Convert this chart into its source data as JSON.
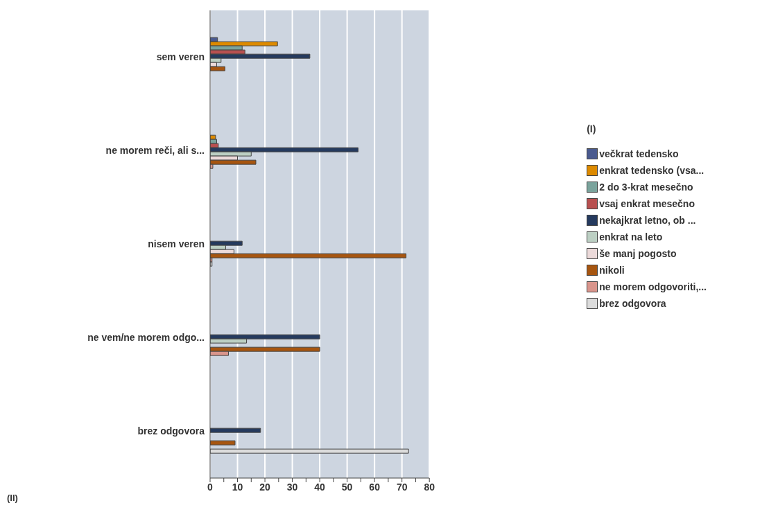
{
  "chart_data": {
    "type": "bar",
    "orientation": "horizontal",
    "categories": [
      "sem veren",
      "ne morem reči, ali s...",
      "nisem veren",
      "ne vem/ne morem odgo...",
      "brez odgovora"
    ],
    "series": [
      {
        "name": "večkrat tedensko",
        "color": "#4a5a8f",
        "values": [
          2.7,
          null,
          null,
          null,
          null
        ]
      },
      {
        "name": "enkrat tedensko (vsa...",
        "color": "#dd8a00",
        "values": [
          24.6,
          2.0,
          null,
          null,
          null
        ]
      },
      {
        "name": "2 do 3-krat mesečno",
        "color": "#7aa39c",
        "values": [
          11.7,
          2.4,
          null,
          null,
          null
        ]
      },
      {
        "name": "vsaj enkrat mesečno",
        "color": "#b85050",
        "values": [
          12.7,
          3.0,
          null,
          null,
          null
        ]
      },
      {
        "name": "nekajkrat letno, ob ...",
        "color": "#253a5e",
        "values": [
          36.4,
          54,
          11.7,
          40,
          18.4
        ]
      },
      {
        "name": "enkrat na leto",
        "color": "#bccfc3",
        "values": [
          4.0,
          15,
          5.7,
          13.3,
          null
        ]
      },
      {
        "name": "še manj pogosto",
        "color": "#ecdada",
        "values": [
          2.4,
          10,
          8.7,
          null,
          null
        ]
      },
      {
        "name": "nikoli",
        "color": "#a65510",
        "values": [
          5.4,
          16.7,
          71.5,
          40,
          9.1
        ]
      },
      {
        "name": "ne morem odgovoriti,...",
        "color": "#d9958c",
        "values": [
          null,
          1.0,
          0.7,
          6.7,
          null
        ]
      },
      {
        "name": "brez odgovora",
        "color": "#dcdcdc",
        "values": [
          null,
          null,
          0.7,
          null,
          72.4
        ]
      }
    ],
    "xlim": [
      0,
      80
    ],
    "xticks": [
      0,
      {
        "value": 5,
        "label": null
      },
      10,
      {
        "value": 15,
        "label": null
      },
      20,
      {
        "value": 25,
        "label": null
      },
      30,
      {
        "value": 35,
        "label": null
      },
      40,
      {
        "value": 45,
        "label": null
      },
      50,
      {
        "value": 55,
        "label": null
      },
      60,
      {
        "value": 65,
        "label": null
      },
      70,
      {
        "value": 75,
        "label": null
      },
      80
    ],
    "grid": "x",
    "legend": "right",
    "legend_title": "(I)",
    "annotations": [
      "(II)"
    ]
  }
}
